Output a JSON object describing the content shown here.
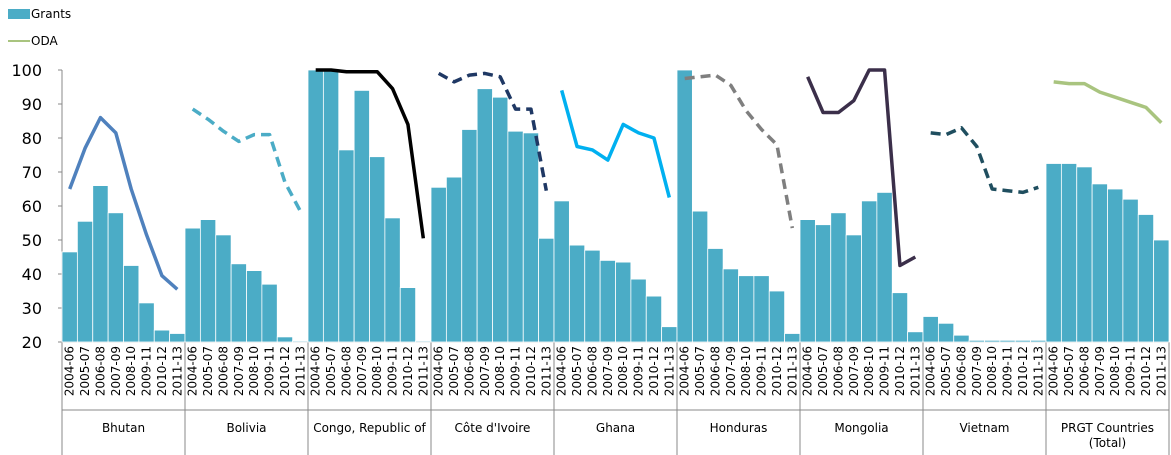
{
  "chart_data": {
    "type": "bar",
    "categories": [
      "2004-06",
      "2005-07",
      "2006-08",
      "2007-09",
      "2008-10",
      "2009-11",
      "2010-12",
      "2011-13"
    ],
    "groups": [
      "Bhutan",
      "Bolivia",
      "Congo, Republic of",
      "Côte d'Ivoire",
      "Ghana",
      "Honduras",
      "Mongolia",
      "Vietnam",
      "PRGT Countries (Total)"
    ],
    "series": [
      {
        "name": "Grants",
        "type": "bar",
        "color": "#4bacc6",
        "values": [
          [
            46.5,
            55.5,
            66,
            58,
            42.5,
            31.5,
            23.5,
            22.5
          ],
          [
            53.5,
            56,
            51.5,
            43,
            41,
            37,
            21.5,
            20.3
          ],
          [
            100,
            100,
            76.5,
            94,
            74.5,
            56.5,
            36,
            20.3
          ],
          [
            65.5,
            68.5,
            82.5,
            94.5,
            92,
            82,
            81.5,
            50.5
          ],
          [
            61.5,
            48.5,
            47,
            44,
            43.5,
            38.5,
            33.5,
            24.5
          ],
          [
            100,
            58.5,
            47.5,
            41.5,
            39.5,
            39.5,
            35,
            22.5
          ],
          [
            56,
            54.5,
            58,
            51.5,
            61.5,
            64,
            34.5,
            23
          ],
          [
            27.5,
            25.5,
            22,
            20.5,
            20.5,
            20.5,
            20.5,
            20.5
          ],
          [
            72.5,
            72.5,
            71.5,
            66.5,
            65,
            62,
            57.5,
            50
          ]
        ]
      },
      {
        "name": "ODA",
        "type": "line",
        "color": "#a9c47f",
        "colors": [
          "#4f81bd",
          "#4bacc6",
          "#000000",
          "#1f3864",
          "#00b0f0",
          "#7f7f7f",
          "#3b2f4a",
          "#1f4e5f",
          "#a9c47f"
        ],
        "dashed": [
          false,
          true,
          false,
          true,
          false,
          true,
          false,
          true,
          false
        ],
        "values": [
          [
            65,
            77,
            86,
            81.5,
            65,
            51.5,
            39.5,
            35.5
          ],
          [
            88.5,
            85.5,
            82,
            79,
            81,
            81,
            67,
            58.5
          ],
          [
            100,
            100,
            99.5,
            99.5,
            99.5,
            94.5,
            84,
            50.5
          ],
          [
            99,
            96.5,
            98.5,
            99,
            98,
            88.5,
            88.5,
            64.5
          ],
          [
            94,
            77.5,
            76.5,
            73.5,
            84,
            81.5,
            80,
            62.5
          ],
          [
            97.5,
            98,
            98.5,
            95.5,
            88,
            82.5,
            78,
            53.5
          ],
          [
            98,
            87.5,
            87.5,
            91,
            100,
            100,
            42.5,
            45
          ],
          [
            81.5,
            81,
            83,
            77.5,
            65,
            64.5,
            64,
            65.5
          ],
          [
            96.5,
            96,
            96,
            93.5,
            92,
            90.5,
            89,
            84.5
          ]
        ]
      }
    ],
    "ylim": [
      20,
      100
    ],
    "yticks": [
      20,
      30,
      40,
      50,
      60,
      70,
      80,
      90,
      100
    ],
    "grid": false
  }
}
